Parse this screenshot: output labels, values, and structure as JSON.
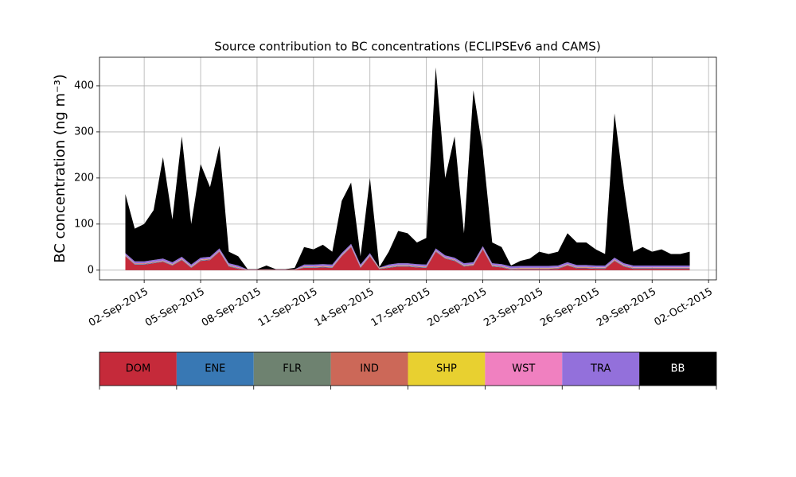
{
  "chart_data": {
    "type": "stacked_area",
    "title": "Source contribution to BC concentrations (ECLIPSEv6 and CAMS)",
    "y_label": "BC concentration (ng m⁻³)",
    "x": [
      "2015-09-01T00:00",
      "2015-09-01T12:00",
      "2015-09-02T00:00",
      "2015-09-02T12:00",
      "2015-09-03T00:00",
      "2015-09-03T12:00",
      "2015-09-04T00:00",
      "2015-09-04T12:00",
      "2015-09-05T00:00",
      "2015-09-05T12:00",
      "2015-09-06T00:00",
      "2015-09-06T12:00",
      "2015-09-07T00:00",
      "2015-09-07T12:00",
      "2015-09-08T00:00",
      "2015-09-08T12:00",
      "2015-09-09T00:00",
      "2015-09-09T12:00",
      "2015-09-10T00:00",
      "2015-09-10T12:00",
      "2015-09-11T00:00",
      "2015-09-11T12:00",
      "2015-09-12T00:00",
      "2015-09-12T12:00",
      "2015-09-13T00:00",
      "2015-09-13T12:00",
      "2015-09-14T00:00",
      "2015-09-14T12:00",
      "2015-09-15T00:00",
      "2015-09-15T12:00",
      "2015-09-16T00:00",
      "2015-09-16T12:00",
      "2015-09-17T00:00",
      "2015-09-17T12:00",
      "2015-09-18T00:00",
      "2015-09-18T12:00",
      "2015-09-19T00:00",
      "2015-09-19T12:00",
      "2015-09-20T00:00",
      "2015-09-20T12:00",
      "2015-09-21T00:00",
      "2015-09-21T12:00",
      "2015-09-22T00:00",
      "2015-09-22T12:00",
      "2015-09-23T00:00",
      "2015-09-23T12:00",
      "2015-09-24T00:00",
      "2015-09-24T12:00",
      "2015-09-25T00:00",
      "2015-09-25T12:00",
      "2015-09-26T00:00",
      "2015-09-26T12:00",
      "2015-09-27T00:00",
      "2015-09-27T12:00",
      "2015-09-28T00:00",
      "2015-09-28T12:00",
      "2015-09-29T00:00",
      "2015-09-29T12:00",
      "2015-09-30T00:00",
      "2015-09-30T12:00",
      "2015-10-01T00:00"
    ],
    "series": [
      {
        "name": "DOM",
        "color": "#c52a3a",
        "values": [
          30,
          12,
          12,
          15,
          18,
          10,
          22,
          5,
          20,
          22,
          40,
          8,
          3,
          0.5,
          0.5,
          1,
          0.5,
          0.5,
          1,
          5,
          5,
          6,
          5,
          30,
          50,
          5,
          30,
          2,
          5,
          8,
          8,
          6,
          5,
          40,
          25,
          20,
          8,
          10,
          45,
          8,
          6,
          1,
          2,
          2,
          2,
          2,
          3,
          10,
          4,
          4,
          3,
          3,
          20,
          8,
          3,
          3,
          3,
          3,
          3,
          3,
          3
        ]
      },
      {
        "name": "ENE",
        "color": "#3878b4",
        "values": [
          1,
          1,
          1,
          1,
          1,
          1,
          1,
          1,
          1,
          1,
          1,
          1,
          1,
          0.2,
          0.2,
          0.2,
          0.2,
          0.2,
          0.2,
          1,
          1,
          1,
          1,
          1,
          1,
          1,
          1,
          1,
          1,
          1,
          1,
          1,
          1,
          1,
          1,
          1,
          1,
          1,
          1,
          1,
          1,
          1,
          1,
          1,
          1,
          1,
          1,
          1,
          1,
          1,
          1,
          1,
          1,
          1,
          1,
          1,
          1,
          1,
          1,
          1,
          1
        ]
      },
      {
        "name": "FLR",
        "color": "#6e8270",
        "values": [
          0.3,
          0.3,
          0.3,
          0.3,
          0.3,
          0.3,
          0.3,
          0.3,
          0.3,
          0.3,
          0.3,
          0.3,
          0.3,
          0.1,
          0.1,
          0.1,
          0.1,
          0.1,
          0.1,
          0.3,
          0.3,
          0.3,
          0.3,
          0.3,
          0.3,
          0.3,
          0.3,
          0.3,
          0.3,
          0.3,
          0.3,
          0.3,
          0.3,
          0.3,
          0.3,
          0.3,
          0.3,
          0.3,
          0.3,
          0.3,
          0.3,
          0.3,
          0.3,
          0.3,
          0.3,
          0.3,
          0.3,
          0.3,
          0.3,
          0.3,
          0.3,
          0.3,
          0.3,
          0.3,
          0.3,
          0.3,
          0.3,
          0.3,
          0.3,
          0.3,
          0.3
        ]
      },
      {
        "name": "IND",
        "color": "#cc6858",
        "values": [
          1,
          1,
          1,
          1,
          1,
          1,
          1,
          1,
          1,
          1,
          1,
          1,
          1,
          0.2,
          0.2,
          0.2,
          0.2,
          0.2,
          0.2,
          1,
          1,
          1,
          1,
          1,
          1,
          1,
          1,
          1,
          1,
          1,
          1,
          1,
          1,
          1,
          1,
          1,
          1,
          1,
          1,
          1,
          1,
          1,
          1,
          1,
          1,
          1,
          1,
          1,
          1,
          1,
          1,
          1,
          1,
          1,
          1,
          1,
          1,
          1,
          1,
          1,
          1
        ]
      },
      {
        "name": "SHP",
        "color": "#e8d030",
        "values": [
          0.3,
          0.3,
          0.3,
          0.3,
          0.3,
          0.3,
          0.3,
          0.3,
          0.3,
          0.3,
          0.3,
          0.3,
          0.3,
          0.1,
          0.1,
          0.1,
          0.1,
          0.1,
          0.1,
          0.3,
          0.3,
          0.3,
          0.3,
          0.3,
          0.3,
          0.3,
          0.3,
          0.3,
          0.3,
          0.3,
          0.3,
          0.3,
          0.3,
          0.3,
          0.3,
          0.3,
          0.3,
          0.3,
          0.3,
          0.3,
          0.3,
          0.3,
          0.3,
          0.3,
          0.3,
          0.3,
          0.3,
          0.3,
          0.3,
          0.3,
          0.3,
          0.3,
          0.3,
          0.3,
          0.3,
          0.3,
          0.3,
          0.3,
          0.3,
          0.3,
          0.3
        ]
      },
      {
        "name": "WST",
        "color": "#f080c0",
        "values": [
          0.5,
          0.5,
          0.5,
          0.5,
          0.5,
          0.5,
          0.5,
          0.5,
          0.5,
          0.5,
          0.5,
          0.5,
          0.5,
          0.1,
          0.1,
          0.1,
          0.1,
          0.1,
          0.1,
          0.5,
          0.5,
          0.5,
          0.5,
          0.5,
          0.5,
          0.5,
          0.5,
          0.5,
          0.5,
          0.5,
          0.5,
          0.5,
          0.5,
          0.5,
          0.5,
          0.5,
          0.5,
          0.5,
          0.5,
          0.5,
          0.5,
          0.5,
          0.5,
          0.5,
          0.5,
          0.5,
          0.5,
          0.5,
          0.5,
          0.5,
          0.5,
          0.5,
          0.5,
          0.5,
          0.5,
          0.5,
          0.5,
          0.5,
          0.5,
          0.5,
          0.5
        ]
      },
      {
        "name": "TRA",
        "color": "#9370db",
        "values": [
          4,
          4,
          4,
          4,
          4,
          4,
          4,
          4,
          4,
          4,
          4,
          4,
          4,
          0.3,
          0.3,
          0.3,
          0.3,
          0.3,
          0.3,
          4,
          4,
          4,
          4,
          4,
          4,
          4,
          4,
          0.5,
          4,
          4,
          4,
          4,
          4,
          4,
          4,
          4,
          4,
          4,
          4,
          4,
          4,
          4,
          4,
          4,
          4,
          4,
          4,
          4,
          4,
          4,
          4,
          4,
          4,
          4,
          4,
          4,
          4,
          4,
          4,
          4,
          4
        ]
      },
      {
        "name": "BB",
        "color": "#000000",
        "values": [
          128,
          71,
          81,
          108,
          220,
          93,
          261,
          88,
          203,
          151,
          223,
          25,
          20,
          0.5,
          0.5,
          8,
          0.5,
          0.5,
          3,
          38,
          33,
          42,
          28,
          113,
          133,
          18,
          163,
          1,
          28,
          70,
          65,
          47,
          58,
          393,
          168,
          263,
          65,
          373,
          208,
          45,
          37,
          2,
          11,
          16,
          31,
          26,
          30,
          63,
          49,
          49,
          35,
          25,
          313,
          165,
          30,
          40,
          30,
          35,
          25,
          25,
          30
        ]
      }
    ],
    "xlim": [
      "2015-08-30T15:00",
      "2015-10-02T10:00"
    ],
    "xticks": [
      {
        "value": "2015-09-02",
        "label": "02-Sep-2015"
      },
      {
        "value": "2015-09-05",
        "label": "05-Sep-2015"
      },
      {
        "value": "2015-09-08",
        "label": "08-Sep-2015"
      },
      {
        "value": "2015-09-11",
        "label": "11-Sep-2015"
      },
      {
        "value": "2015-09-14",
        "label": "14-Sep-2015"
      },
      {
        "value": "2015-09-17",
        "label": "17-Sep-2015"
      },
      {
        "value": "2015-09-20",
        "label": "20-Sep-2015"
      },
      {
        "value": "2015-09-23",
        "label": "23-Sep-2015"
      },
      {
        "value": "2015-09-26",
        "label": "26-Sep-2015"
      },
      {
        "value": "2015-09-29",
        "label": "29-Sep-2015"
      },
      {
        "value": "2015-10-02",
        "label": "02-Oct-2015"
      }
    ],
    "ylim": [
      -21,
      462
    ],
    "yticks": [
      0,
      100,
      200,
      300,
      400
    ],
    "grid": true
  }
}
